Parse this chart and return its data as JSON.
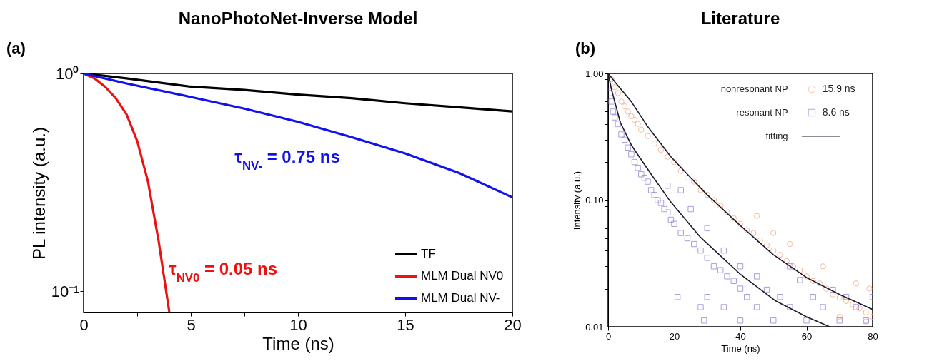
{
  "chart_data": [
    {
      "type": "line",
      "title": "NanoPhotoNet-Inverse Model",
      "xlabel": "Time (ns)",
      "ylabel": "PL intensity (a.u.)",
      "log": true,
      "xlim": [
        0,
        20
      ],
      "ylim": [
        0.08,
        1
      ],
      "xticks": [
        0,
        {
          "value": 2.5,
          "label": null
        },
        5,
        {
          "value": 7.5,
          "label": null
        },
        10,
        {
          "value": 12.5,
          "label": null
        },
        15,
        {
          "value": 17.5,
          "label": null
        },
        20
      ],
      "yticks": [
        {
          "value": 0.1,
          "label": "10⁻¹"
        },
        {
          "value": 1,
          "label": "10⁰"
        }
      ],
      "legend": "bottom right",
      "grid": false,
      "series": [
        {
          "name": "TF",
          "color": "#000000",
          "x": [
            0,
            2,
            5,
            7.5,
            10,
            12.5,
            15,
            17.5,
            20
          ],
          "values": [
            1,
            0.95,
            0.87,
            0.84,
            0.8,
            0.77,
            0.73,
            0.7,
            0.67
          ]
        },
        {
          "name": "MLM Dual NV0",
          "color": "#ee1111",
          "x": [
            0,
            0.5,
            1,
            1.5,
            2,
            2.5,
            3,
            3.5,
            4
          ],
          "values": [
            1,
            0.95,
            0.87,
            0.77,
            0.65,
            0.49,
            0.32,
            0.17,
            0.08
          ]
        },
        {
          "name": "MLM Dual NV-",
          "color": "#1111ee",
          "x": [
            0,
            2,
            5,
            7.5,
            10,
            12.5,
            15,
            17.5,
            20
          ],
          "values": [
            1,
            0.9,
            0.78,
            0.69,
            0.6,
            0.51,
            0.43,
            0.35,
            0.27
          ]
        }
      ],
      "annotations": [
        "(a)",
        {
          "text": "τ$_{NV-}$ = 0.75 ns",
          "x": 9.5,
          "y": 0.62
        },
        {
          "text": "τ$_{NV0}$ = 0.05 ns",
          "x": 3.7,
          "y": 0.126
        }
      ]
    },
    {
      "type": "scatter",
      "title": "Literature",
      "xlabel": "Time (ns)",
      "ylabel": "Intensity (a.u.)",
      "log": true,
      "xlim": [
        0,
        80
      ],
      "ylim": [
        0.01,
        1
      ],
      "xticks": [
        0,
        20,
        40,
        60,
        80
      ],
      "yticks": [
        {
          "value": 0.01,
          "label": "0.01"
        },
        {
          "value": 0.02,
          "label": null
        },
        {
          "value": 0.03,
          "label": null
        },
        {
          "value": 0.04,
          "label": null
        },
        {
          "value": 0.05,
          "label": null
        },
        {
          "value": 0.06,
          "label": null
        },
        {
          "value": 0.07,
          "label": null
        },
        {
          "value": 0.08,
          "label": null
        },
        {
          "value": 0.09,
          "label": null
        },
        {
          "value": 0.1,
          "label": "0.10"
        },
        {
          "value": 0.2,
          "label": null
        },
        {
          "value": 0.3,
          "label": null
        },
        {
          "value": 0.4,
          "label": null
        },
        {
          "value": 0.5,
          "label": null
        },
        {
          "value": 0.6,
          "label": null
        },
        {
          "value": 0.7,
          "label": null
        },
        {
          "value": 0.8,
          "label": null
        },
        {
          "value": 0.9,
          "label": null
        },
        {
          "value": 1,
          "label": "1.00"
        }
      ],
      "legend": "top right",
      "grid": false,
      "series": [
        {
          "name": "nonresonant NP",
          "type": "scatter",
          "marker": "circle",
          "color": "#f0a27a",
          "x": [
            1,
            2,
            3,
            4,
            5,
            6,
            7,
            8,
            9,
            10,
            12,
            14,
            16,
            18,
            20,
            22,
            24,
            26,
            28,
            30,
            32,
            34,
            36,
            38,
            40,
            42,
            44,
            45,
            46,
            48,
            50,
            50,
            52,
            54,
            55,
            56,
            58,
            60,
            62,
            64,
            65,
            66,
            68,
            70,
            70,
            72,
            74,
            75,
            76,
            78,
            78,
            79,
            80
          ],
          "values": [
            0.9,
            0.78,
            0.7,
            0.6,
            0.55,
            0.5,
            0.46,
            0.43,
            0.4,
            0.36,
            0.32,
            0.28,
            0.25,
            0.22,
            0.2,
            0.17,
            0.15,
            0.14,
            0.12,
            0.11,
            0.1,
            0.09,
            0.08,
            0.072,
            0.065,
            0.058,
            0.055,
            0.075,
            0.048,
            0.044,
            0.04,
            0.055,
            0.037,
            0.033,
            0.045,
            0.03,
            0.028,
            0.025,
            0.023,
            0.022,
            0.03,
            0.02,
            0.018,
            0.017,
            0.012,
            0.016,
            0.015,
            0.022,
            0.014,
            0.013,
            0.011,
            0.02,
            0.012
          ]
        },
        {
          "name": "resonant NP",
          "type": "scatter",
          "marker": "square",
          "color": "#8b7ed0",
          "x": [
            0,
            0.5,
            1,
            1.5,
            2,
            3,
            4,
            5,
            6,
            7,
            8,
            9,
            10,
            11,
            12,
            13,
            14,
            15,
            16,
            17,
            18,
            18,
            19,
            20,
            21,
            22,
            22,
            24,
            25,
            26,
            28,
            28,
            29,
            30,
            30,
            30,
            32,
            34,
            35,
            35,
            36,
            38,
            40,
            40,
            40,
            42,
            45,
            45,
            48,
            50,
            52,
            55,
            55,
            58,
            60,
            62,
            65,
            68,
            70,
            72,
            75,
            78,
            80
          ],
          "values": [
            0.8,
            0.7,
            0.6,
            0.5,
            0.45,
            0.4,
            0.33,
            0.3,
            0.26,
            0.23,
            0.2,
            0.18,
            0.16,
            0.15,
            0.14,
            0.12,
            0.11,
            0.1,
            0.095,
            0.085,
            0.08,
            0.13,
            0.07,
            0.065,
            0.0172,
            0.055,
            0.12,
            0.05,
            0.085,
            0.045,
            0.04,
            0.0143,
            0.0112,
            0.035,
            0.0172,
            0.06,
            0.03,
            0.028,
            0.0143,
            0.04,
            0.025,
            0.023,
            0.02,
            0.0112,
            0.03,
            0.0172,
            0.0143,
            0.025,
            0.0196,
            0.0112,
            0.0172,
            0.0143,
            0.03,
            0.0234,
            0.0112,
            0.0172,
            0.0143,
            0.0196,
            0.0112,
            0.0172,
            0.0143,
            0.0112,
            0.0172
          ]
        },
        {
          "name": "fitting",
          "type": "line",
          "color": "#1c1a2e",
          "x": [
            0,
            3,
            7,
            12,
            19,
            25,
            30,
            40,
            50,
            60,
            70,
            80
          ],
          "values": [
            1.0,
            0.8,
            0.6,
            0.38,
            0.22,
            0.15,
            0.11,
            0.063,
            0.037,
            0.0245,
            0.018,
            0.0137
          ]
        },
        {
          "type": "line",
          "color": "#1c1a2e",
          "x": [
            0,
            1,
            2,
            3.7,
            7.1,
            13.4,
            18.9,
            27.9,
            40,
            50.7,
            60,
            67
          ],
          "values": [
            1.0,
            0.75,
            0.6,
            0.41,
            0.27,
            0.155,
            0.097,
            0.051,
            0.026,
            0.016,
            0.012,
            0.01
          ]
        }
      ],
      "annotations": [
        "(b)",
        "15.9 ns",
        "8.6 ns"
      ]
    }
  ]
}
